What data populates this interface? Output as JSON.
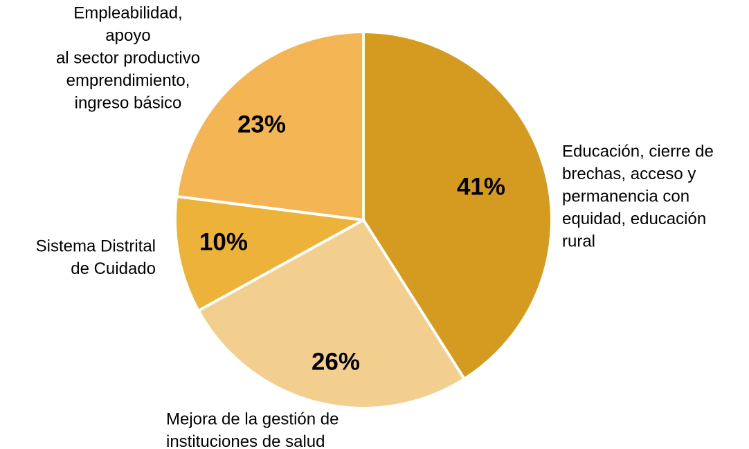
{
  "chart_data": {
    "type": "pie",
    "categories": [
      [
        "Educación, cierre de",
        "brechas, acceso y",
        "permanencia con",
        "equidad, educación",
        "rural"
      ],
      [
        "Mejora de la gestión de",
        "instituciones de salud"
      ],
      [
        "Sistema Distrital",
        "de Cuidado"
      ],
      [
        "Empleabilidad,",
        "apoyo",
        "al sector productivo",
        "emprendimiento,",
        "ingreso básico"
      ]
    ],
    "values": [
      41,
      26,
      10,
      23
    ],
    "value_labels": [
      "41%",
      "26%",
      "10%",
      "23%"
    ],
    "colors": [
      "#D59A20",
      "#F3CF8F",
      "#ECB23A",
      "#F4B655"
    ]
  }
}
